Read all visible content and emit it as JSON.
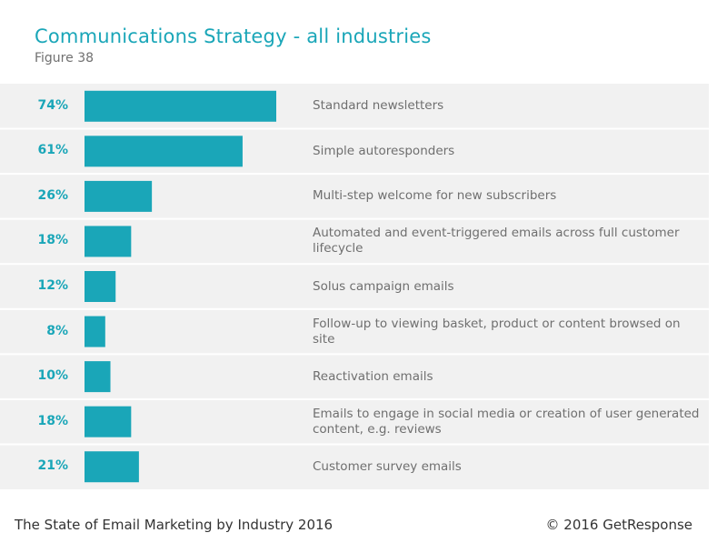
{
  "header": {
    "title": "Communications Strategy - all industries",
    "subtitle": "Figure 38"
  },
  "chart_data": {
    "type": "bar",
    "orientation": "horizontal",
    "title": "Communications Strategy - all industries",
    "categories": [
      "Standard newsletters",
      "Simple autoresponders",
      "Multi-step welcome for new subscribers",
      "Automated and event-triggered emails across full customer lifecycle",
      "Solus campaign emails",
      "Follow-up to viewing basket, product or content browsed on site",
      "Reactivation emails",
      "Emails to engage in social media or creation of user generated content, e.g. reviews",
      "Customer survey emails"
    ],
    "values": [
      74,
      61,
      26,
      18,
      12,
      8,
      10,
      18,
      21
    ],
    "value_labels": [
      "74%",
      "61%",
      "26%",
      "18%",
      "12%",
      "8%",
      "10%",
      "18%",
      "21%"
    ],
    "unit": "%",
    "grid": false,
    "bar_color": "#1aa6b8"
  },
  "footer": {
    "left": "The State of Email Marketing by Industry 2016",
    "right": "© 2016 GetResponse"
  },
  "colors": {
    "accent": "#1aa6b8",
    "panel_bg": "#f1f1f1",
    "separator": "#ffffff",
    "label_text": "#6f6f6f"
  }
}
